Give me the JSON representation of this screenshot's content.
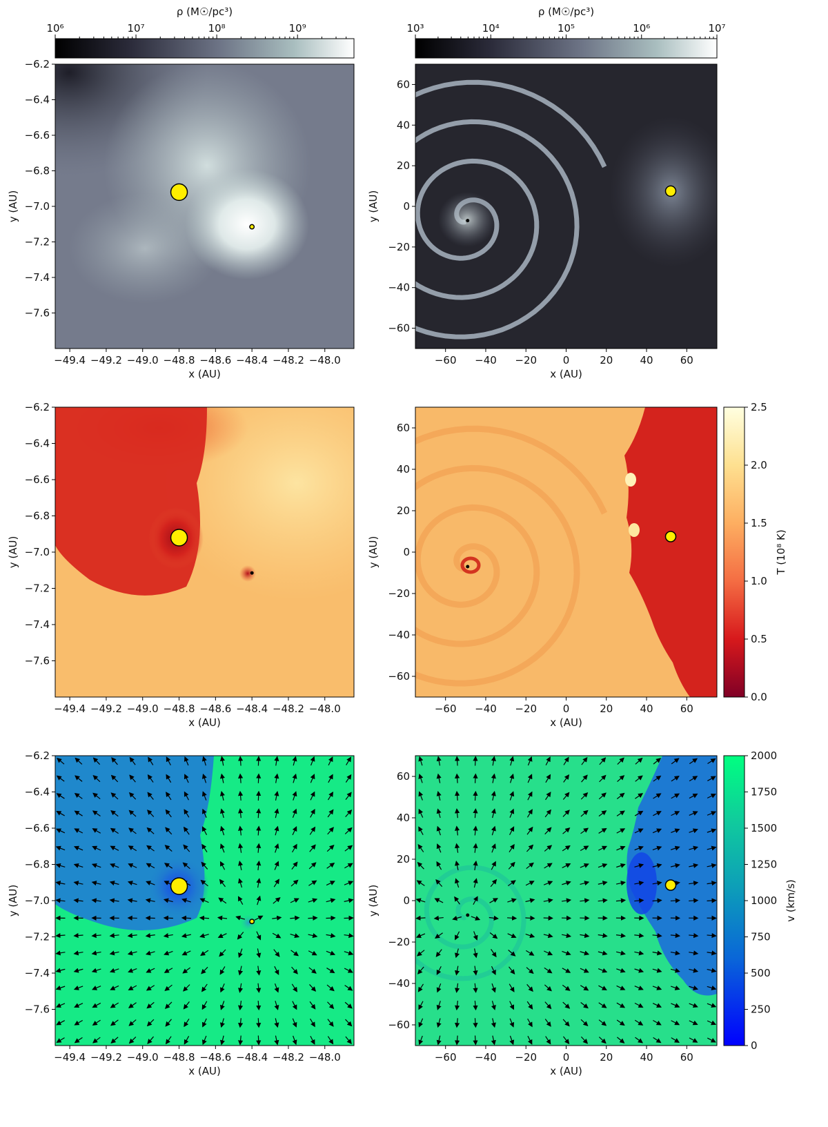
{
  "chart_data": [
    {
      "id": "density-zoom",
      "type": "heatmap",
      "quantity": "density",
      "colorbar": {
        "label": "ρ (M☉/pc³)",
        "scale": "log",
        "range": [
          1000000.0,
          5000000000.0
        ],
        "ticks": [
          "10⁶",
          "10⁷",
          "10⁸",
          "10⁹"
        ],
        "colors": [
          "#000000",
          "#555a6e",
          "#8f9aa6",
          "#c9dcdb",
          "#ffffff"
        ],
        "placement": "top"
      },
      "xlabel": "x (AU)",
      "ylabel": "y (AU)",
      "xlim": [
        -49.48,
        -47.84
      ],
      "ylim": [
        -7.8,
        -6.2
      ],
      "xticks": [
        "−49.4",
        "−49.2",
        "−49.0",
        "−48.8",
        "−48.6",
        "−48.4",
        "−48.2",
        "−48.0"
      ],
      "yticks": [
        "−6.2",
        "−6.4",
        "−6.6",
        "−6.8",
        "−7.0",
        "−7.2",
        "−7.4",
        "−7.6"
      ],
      "background": "#7a8091",
      "features": [
        {
          "kind": "glow",
          "x": -48.4,
          "y": -7.1,
          "color": "#ffffff"
        },
        {
          "kind": "glow",
          "x": -48.8,
          "y": -6.92,
          "color": "#e0ecea"
        }
      ],
      "markers": [
        {
          "name": "star-large",
          "x": -48.8,
          "y": -6.92,
          "size": "large",
          "color": "#ffee00"
        },
        {
          "name": "star-small",
          "x": -48.4,
          "y": -7.115,
          "size": "small",
          "color": "#ffee00"
        }
      ]
    },
    {
      "id": "density-wide",
      "type": "heatmap",
      "quantity": "density",
      "colorbar": {
        "label": "ρ (M☉/pc³)",
        "scale": "log",
        "range": [
          1000.0,
          10000000.0
        ],
        "ticks": [
          "10³",
          "10⁴",
          "10⁵",
          "10⁶",
          "10⁷"
        ],
        "colors": [
          "#000000",
          "#555a6e",
          "#8f9aa6",
          "#c9dcdb",
          "#ffffff"
        ],
        "placement": "top"
      },
      "xlabel": "x (AU)",
      "ylabel": "y (AU)",
      "xlim": [
        -75,
        75
      ],
      "ylim": [
        -70,
        70
      ],
      "xticks": [
        "−60",
        "−40",
        "−20",
        "0",
        "20",
        "40",
        "60"
      ],
      "yticks": [
        "60",
        "40",
        "20",
        "0",
        "−20",
        "−40",
        "−60"
      ],
      "background": "#25252d",
      "features": [
        {
          "kind": "spiral",
          "x": -49,
          "y": -7,
          "color": "#a8b4bf"
        },
        {
          "kind": "glow",
          "x": 52,
          "y": 7,
          "color": "#6a7080"
        }
      ],
      "markers": [
        {
          "name": "star-large",
          "x": 52,
          "y": 7.5,
          "size": "medium",
          "color": "#ffee00"
        },
        {
          "name": "star-small",
          "x": -49,
          "y": -7,
          "size": "tiny",
          "color": "#000000"
        }
      ]
    },
    {
      "id": "temperature-zoom",
      "type": "heatmap",
      "quantity": "temperature",
      "xlabel": "x (AU)",
      "ylabel": "y (AU)",
      "xlim": [
        -49.48,
        -47.84
      ],
      "ylim": [
        -7.8,
        -6.2
      ],
      "xticks": [
        "−49.4",
        "−49.2",
        "−49.0",
        "−48.8",
        "−48.6",
        "−48.4",
        "−48.2",
        "−48.0"
      ],
      "yticks": [
        "−6.2",
        "−6.4",
        "−6.6",
        "−6.8",
        "−7.0",
        "−7.2",
        "−7.4",
        "−7.6"
      ],
      "background": "#f9bd6c",
      "features": [
        {
          "kind": "cold-region",
          "x": -49.05,
          "y": -6.65,
          "color": "#d0201c"
        },
        {
          "kind": "warm-region",
          "x": -48.05,
          "y": -6.55,
          "color": "#fcd98a"
        },
        {
          "kind": "hot-spot",
          "x": -48.4,
          "y": -7.115,
          "color": "#c81f1a"
        }
      ],
      "markers": [
        {
          "name": "star-large",
          "x": -48.8,
          "y": -6.92,
          "size": "large",
          "color": "#ffee00"
        },
        {
          "name": "star-small",
          "x": -48.4,
          "y": -7.115,
          "size": "tiny",
          "color": "#000000"
        }
      ]
    },
    {
      "id": "temperature-wide",
      "type": "heatmap",
      "quantity": "temperature",
      "colorbar": {
        "label": "T (10⁸ K)",
        "scale": "linear",
        "range": [
          0.0,
          2.5
        ],
        "ticks": [
          "0.0",
          "0.5",
          "1.0",
          "1.5",
          "2.0",
          "2.5"
        ],
        "colors": [
          "#800026",
          "#d7191c",
          "#f46d43",
          "#fdae61",
          "#fee090",
          "#ffffcc"
        ],
        "placement": "right"
      },
      "xlabel": "x (AU)",
      "ylabel": "y (AU)",
      "xlim": [
        -75,
        75
      ],
      "ylim": [
        -70,
        70
      ],
      "xticks": [
        "−60",
        "−40",
        "−20",
        "0",
        "20",
        "40",
        "60"
      ],
      "yticks": [
        "60",
        "40",
        "20",
        "0",
        "−20",
        "−40",
        "−60"
      ],
      "background": "#f8b969",
      "features": [
        {
          "kind": "spiral",
          "x": -49,
          "y": -7,
          "color": "#f0a858"
        },
        {
          "kind": "cold-region",
          "x": 55,
          "y": 0,
          "color": "#d4231d"
        }
      ],
      "markers": [
        {
          "name": "star-large",
          "x": 52,
          "y": 7.5,
          "size": "medium",
          "color": "#ffee00"
        },
        {
          "name": "star-small",
          "x": -49,
          "y": -7,
          "size": "tiny",
          "color": "#000000"
        }
      ]
    },
    {
      "id": "velocity-zoom",
      "type": "heatmap",
      "quantity": "velocity",
      "xlabel": "x (AU)",
      "ylabel": "y (AU)",
      "xlim": [
        -49.48,
        -47.84
      ],
      "ylim": [
        -7.8,
        -6.2
      ],
      "xticks": [
        "−49.4",
        "−49.2",
        "−49.0",
        "−48.8",
        "−48.6",
        "−48.4",
        "−48.2",
        "−48.0"
      ],
      "yticks": [
        "−6.2",
        "−6.4",
        "−6.6",
        "−6.8",
        "−7.0",
        "−7.2",
        "−7.4",
        "−7.6"
      ],
      "background": "#16ea86",
      "features": [
        {
          "kind": "slow-region",
          "x": -49.05,
          "y": -6.65,
          "color": "#1f88cc"
        },
        {
          "kind": "slow-core",
          "x": -48.8,
          "y": -6.92,
          "color": "#1a4ce8"
        },
        {
          "kind": "slow-core",
          "x": -48.4,
          "y": -7.115,
          "color": "#2aa8c0"
        }
      ],
      "vector_field": {
        "kind": "radial-outflow",
        "center": [
          -48.4,
          -7.115
        ]
      },
      "markers": [
        {
          "name": "star-large",
          "x": -48.8,
          "y": -6.92,
          "size": "large",
          "color": "#ffee00"
        },
        {
          "name": "star-small",
          "x": -48.4,
          "y": -7.115,
          "size": "small",
          "color": "#ffee00"
        }
      ]
    },
    {
      "id": "velocity-wide",
      "type": "heatmap",
      "quantity": "velocity",
      "colorbar": {
        "label": "v (km/s)",
        "scale": "linear",
        "range": [
          0,
          2000
        ],
        "ticks": [
          "0",
          "250",
          "500",
          "750",
          "1000",
          "1250",
          "1500",
          "1750",
          "2000"
        ],
        "colors": [
          "#0000ff",
          "#0a66d8",
          "#0d99bb",
          "#0ec4a0",
          "#00ff80"
        ],
        "placement": "right"
      },
      "xlabel": "x (AU)",
      "ylabel": "y (AU)",
      "xlim": [
        -75,
        75
      ],
      "ylim": [
        -70,
        70
      ],
      "xticks": [
        "−60",
        "−40",
        "−20",
        "0",
        "20",
        "40",
        "60"
      ],
      "yticks": [
        "60",
        "40",
        "20",
        "0",
        "−20",
        "−40",
        "−60"
      ],
      "background": "#26e08a",
      "features": [
        {
          "kind": "spiral",
          "x": -49,
          "y": -7,
          "color": "#20bf98"
        },
        {
          "kind": "slow-region",
          "x": 55,
          "y": 0,
          "color": "#1d73d6"
        }
      ],
      "vector_field": {
        "kind": "radial-outflow",
        "center": [
          -49,
          -7
        ]
      },
      "markers": [
        {
          "name": "star-large",
          "x": 52,
          "y": 7.5,
          "size": "medium",
          "color": "#ffee00"
        },
        {
          "name": "star-small",
          "x": -49,
          "y": -7,
          "size": "tiny",
          "color": "#000000"
        }
      ]
    }
  ]
}
